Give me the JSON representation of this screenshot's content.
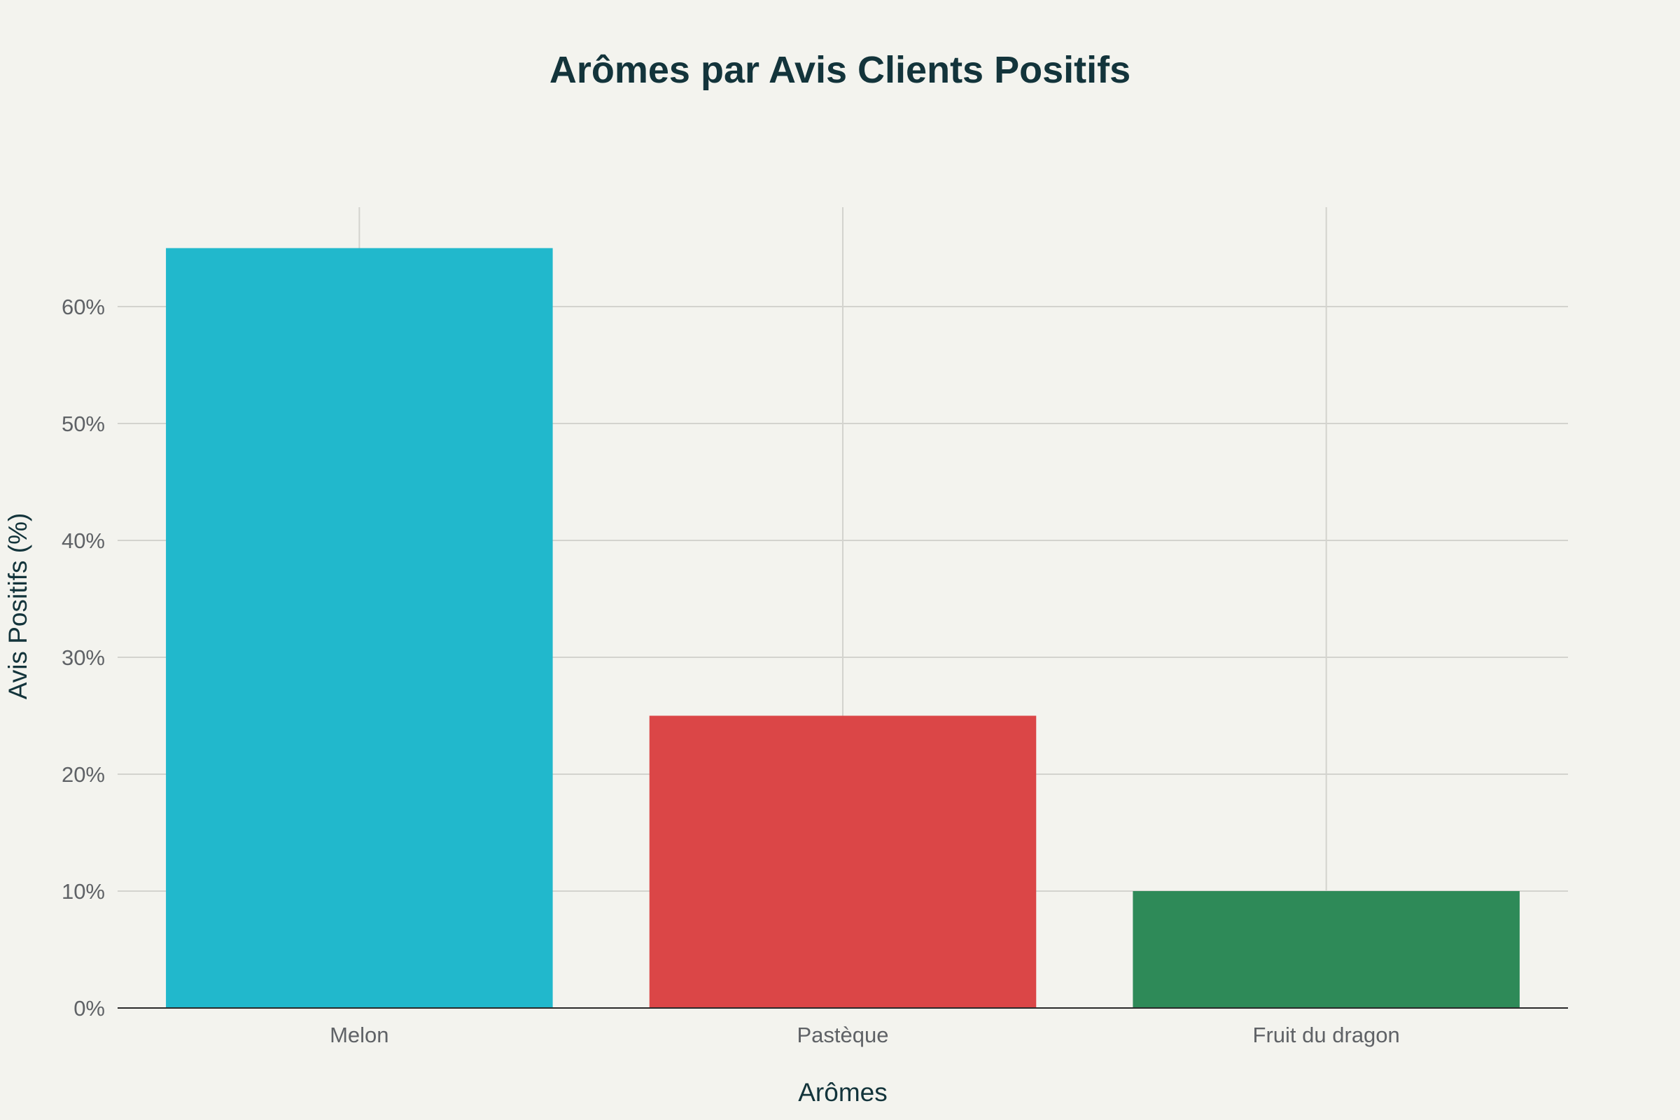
{
  "chart_data": {
    "type": "bar",
    "title": "Arômes par Avis Clients Positifs",
    "xlabel": "Arômes",
    "ylabel": "Avis Positifs (%)",
    "categories": [
      "Melon",
      "Pastèque",
      "Fruit du dragon"
    ],
    "values": [
      65,
      25,
      10
    ],
    "colors": [
      "#21b8cc",
      "#db4647",
      "#2e8a58"
    ],
    "ylim": [
      0,
      68.5
    ],
    "yticks": [
      0,
      10,
      20,
      30,
      40,
      50,
      60
    ],
    "ytick_labels": [
      "0%",
      "10%",
      "20%",
      "30%",
      "40%",
      "50%",
      "60%"
    ],
    "grid": true,
    "legend": "none"
  }
}
